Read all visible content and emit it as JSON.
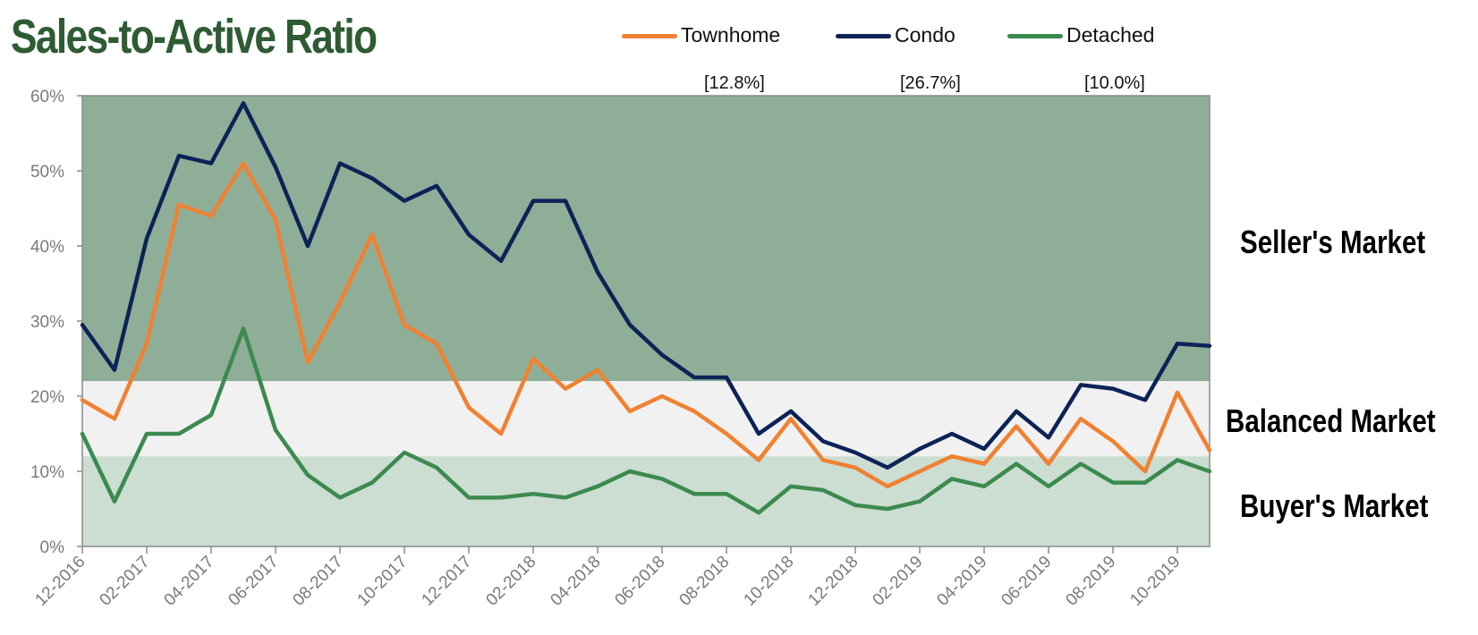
{
  "title": "Sales-to-Active Ratio",
  "zones": {
    "seller": {
      "label": "Seller's Market",
      "from": 22,
      "to": 60,
      "color": "#8eae98"
    },
    "balanced": {
      "label": "Balanced Market",
      "from": 12,
      "to": 22,
      "color": "#f1f1f1"
    },
    "buyer": {
      "label": "Buyer's Market",
      "from": 0,
      "to": 12,
      "color": "#ccddd2"
    }
  },
  "legend": [
    {
      "name": "Townhome",
      "value": "[12.8%]",
      "color": "#f08132"
    },
    {
      "name": "Condo",
      "value": "[26.7%]",
      "color": "#0d2357"
    },
    {
      "name": "Detached",
      "value": "[10.0%]",
      "color": "#3b8a4f"
    }
  ],
  "chart_data": {
    "type": "line",
    "ylim": [
      0,
      60
    ],
    "y_unit": "%",
    "y_ticks": [
      "0%",
      "10%",
      "20%",
      "30%",
      "40%",
      "50%",
      "60%"
    ],
    "x_tick_labels": [
      "12-2016",
      "02-2017",
      "04-2017",
      "06-2017",
      "08-2017",
      "10-2017",
      "12-2017",
      "02-2018",
      "04-2018",
      "06-2018",
      "08-2018",
      "10-2018",
      "12-2018",
      "02-2019",
      "04-2019",
      "06-2019",
      "08-2019",
      "10-2019"
    ],
    "x": [
      "12-2016",
      "01-2017",
      "02-2017",
      "03-2017",
      "04-2017",
      "05-2017",
      "06-2017",
      "07-2017",
      "08-2017",
      "09-2017",
      "10-2017",
      "11-2017",
      "12-2017",
      "01-2018",
      "02-2018",
      "03-2018",
      "04-2018",
      "05-2018",
      "06-2018",
      "07-2018",
      "08-2018",
      "09-2018",
      "10-2018",
      "11-2018",
      "12-2018",
      "01-2019",
      "02-2019",
      "03-2019",
      "04-2019",
      "05-2019",
      "06-2019",
      "07-2019",
      "08-2019",
      "09-2019",
      "10-2019",
      "11-2019"
    ],
    "series": [
      {
        "name": "Townhome",
        "color": "#f08132",
        "values": [
          19.5,
          17.0,
          27.0,
          45.5,
          44.0,
          51.0,
          43.5,
          24.5,
          32.5,
          41.5,
          29.5,
          27.0,
          18.5,
          15.0,
          25.0,
          21.0,
          23.5,
          18.0,
          20.0,
          18.0,
          15.0,
          11.5,
          17.0,
          11.5,
          10.5,
          8.0,
          10.0,
          12.0,
          11.0,
          16.0,
          11.0,
          17.0,
          14.0,
          10.0,
          20.5,
          12.8
        ]
      },
      {
        "name": "Condo",
        "color": "#0d2357",
        "values": [
          29.5,
          23.5,
          41.0,
          52.0,
          51.0,
          59.0,
          50.5,
          40.0,
          51.0,
          49.0,
          46.0,
          48.0,
          41.5,
          38.0,
          46.0,
          46.0,
          36.5,
          29.5,
          25.5,
          22.5,
          22.5,
          15.0,
          18.0,
          14.0,
          12.5,
          10.5,
          13.0,
          15.0,
          13.0,
          18.0,
          14.5,
          21.5,
          21.0,
          19.5,
          27.0,
          26.7
        ]
      },
      {
        "name": "Detached",
        "color": "#3b8a4f",
        "values": [
          15.0,
          6.0,
          15.0,
          15.0,
          17.5,
          29.0,
          15.5,
          9.5,
          6.5,
          8.5,
          12.5,
          10.5,
          6.5,
          6.5,
          7.0,
          6.5,
          8.0,
          10.0,
          9.0,
          7.0,
          7.0,
          4.5,
          8.0,
          7.5,
          5.5,
          5.0,
          6.0,
          9.0,
          8.0,
          11.0,
          8.0,
          11.0,
          8.5,
          8.5,
          11.5,
          10.0
        ]
      }
    ]
  }
}
